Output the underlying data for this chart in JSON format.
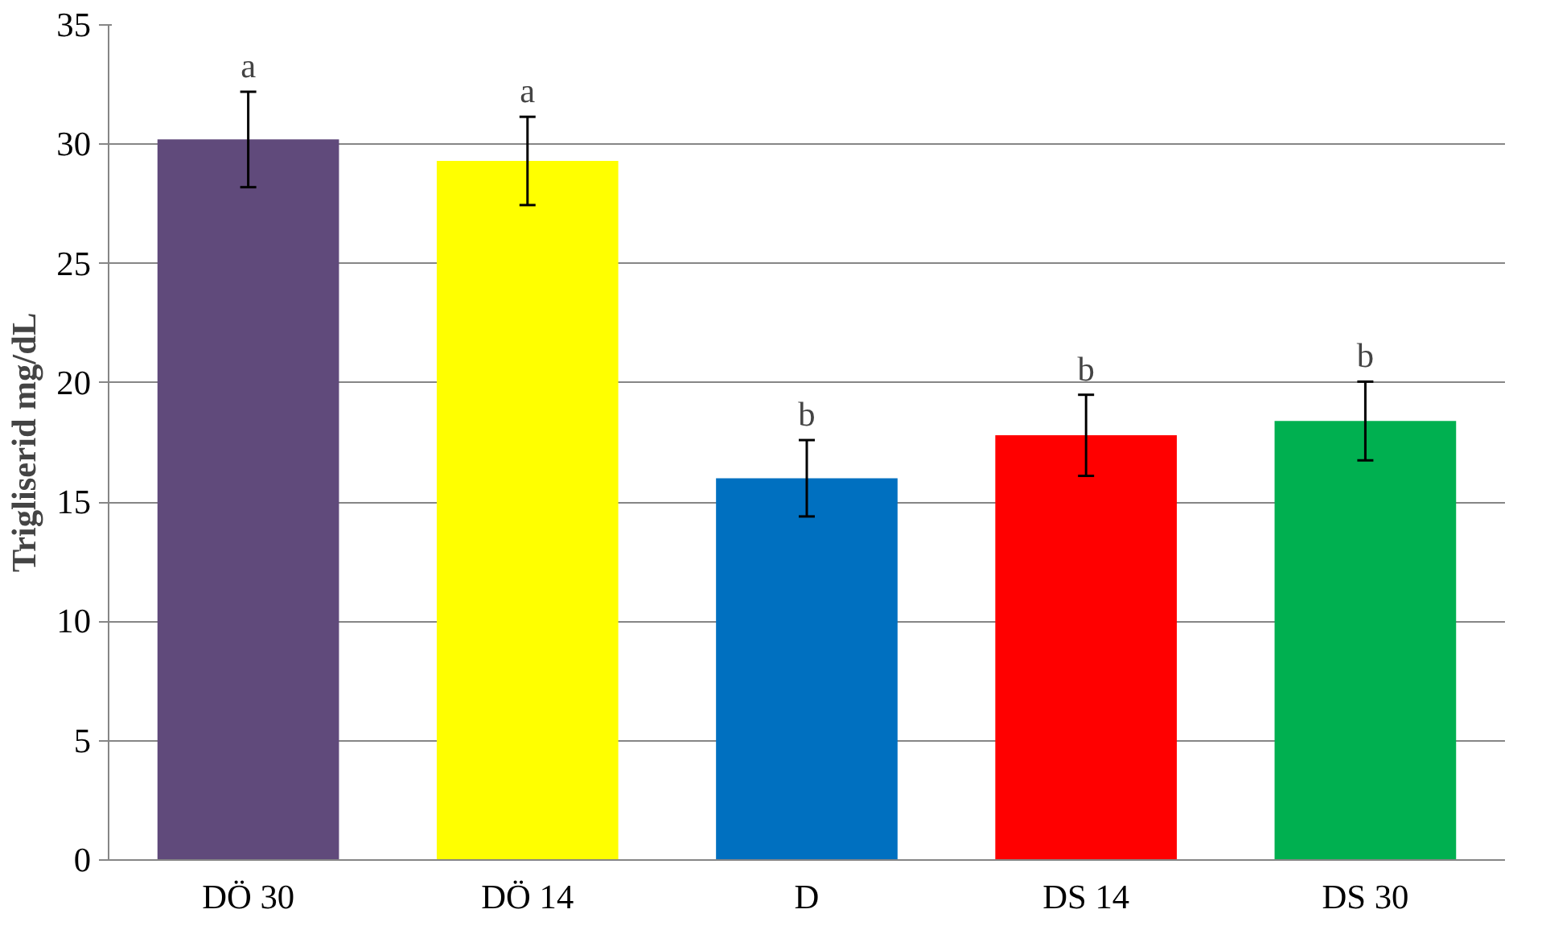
{
  "chart_data": {
    "type": "bar",
    "ylabel": "Trigliserid mg/dL",
    "categories": [
      "DÖ 30",
      "DÖ 14",
      "D",
      "DS 14",
      "DS 30"
    ],
    "values": [
      30.2,
      29.3,
      16.0,
      17.8,
      18.4
    ],
    "colors": [
      "#604a7b",
      "#ffff00",
      "#0070c0",
      "#ff0000",
      "#00b050"
    ],
    "errors": [
      2.0,
      1.85,
      1.6,
      1.7,
      1.65
    ],
    "ylim": [
      0,
      35
    ],
    "yticks": [
      0,
      5,
      10,
      15,
      20,
      25,
      30,
      35
    ],
    "grid": "y",
    "annotations": [
      {
        "text": "a",
        "x": "DÖ 30",
        "y": 32.2
      },
      {
        "text": "a",
        "x": "DÖ 14",
        "y": 31.15
      },
      {
        "text": "b",
        "x": "D",
        "y": 17.6
      },
      {
        "text": "b",
        "x": "DS 14",
        "y": 19.5
      },
      {
        "text": "b",
        "x": "DS 30",
        "y": 20.05
      }
    ]
  }
}
